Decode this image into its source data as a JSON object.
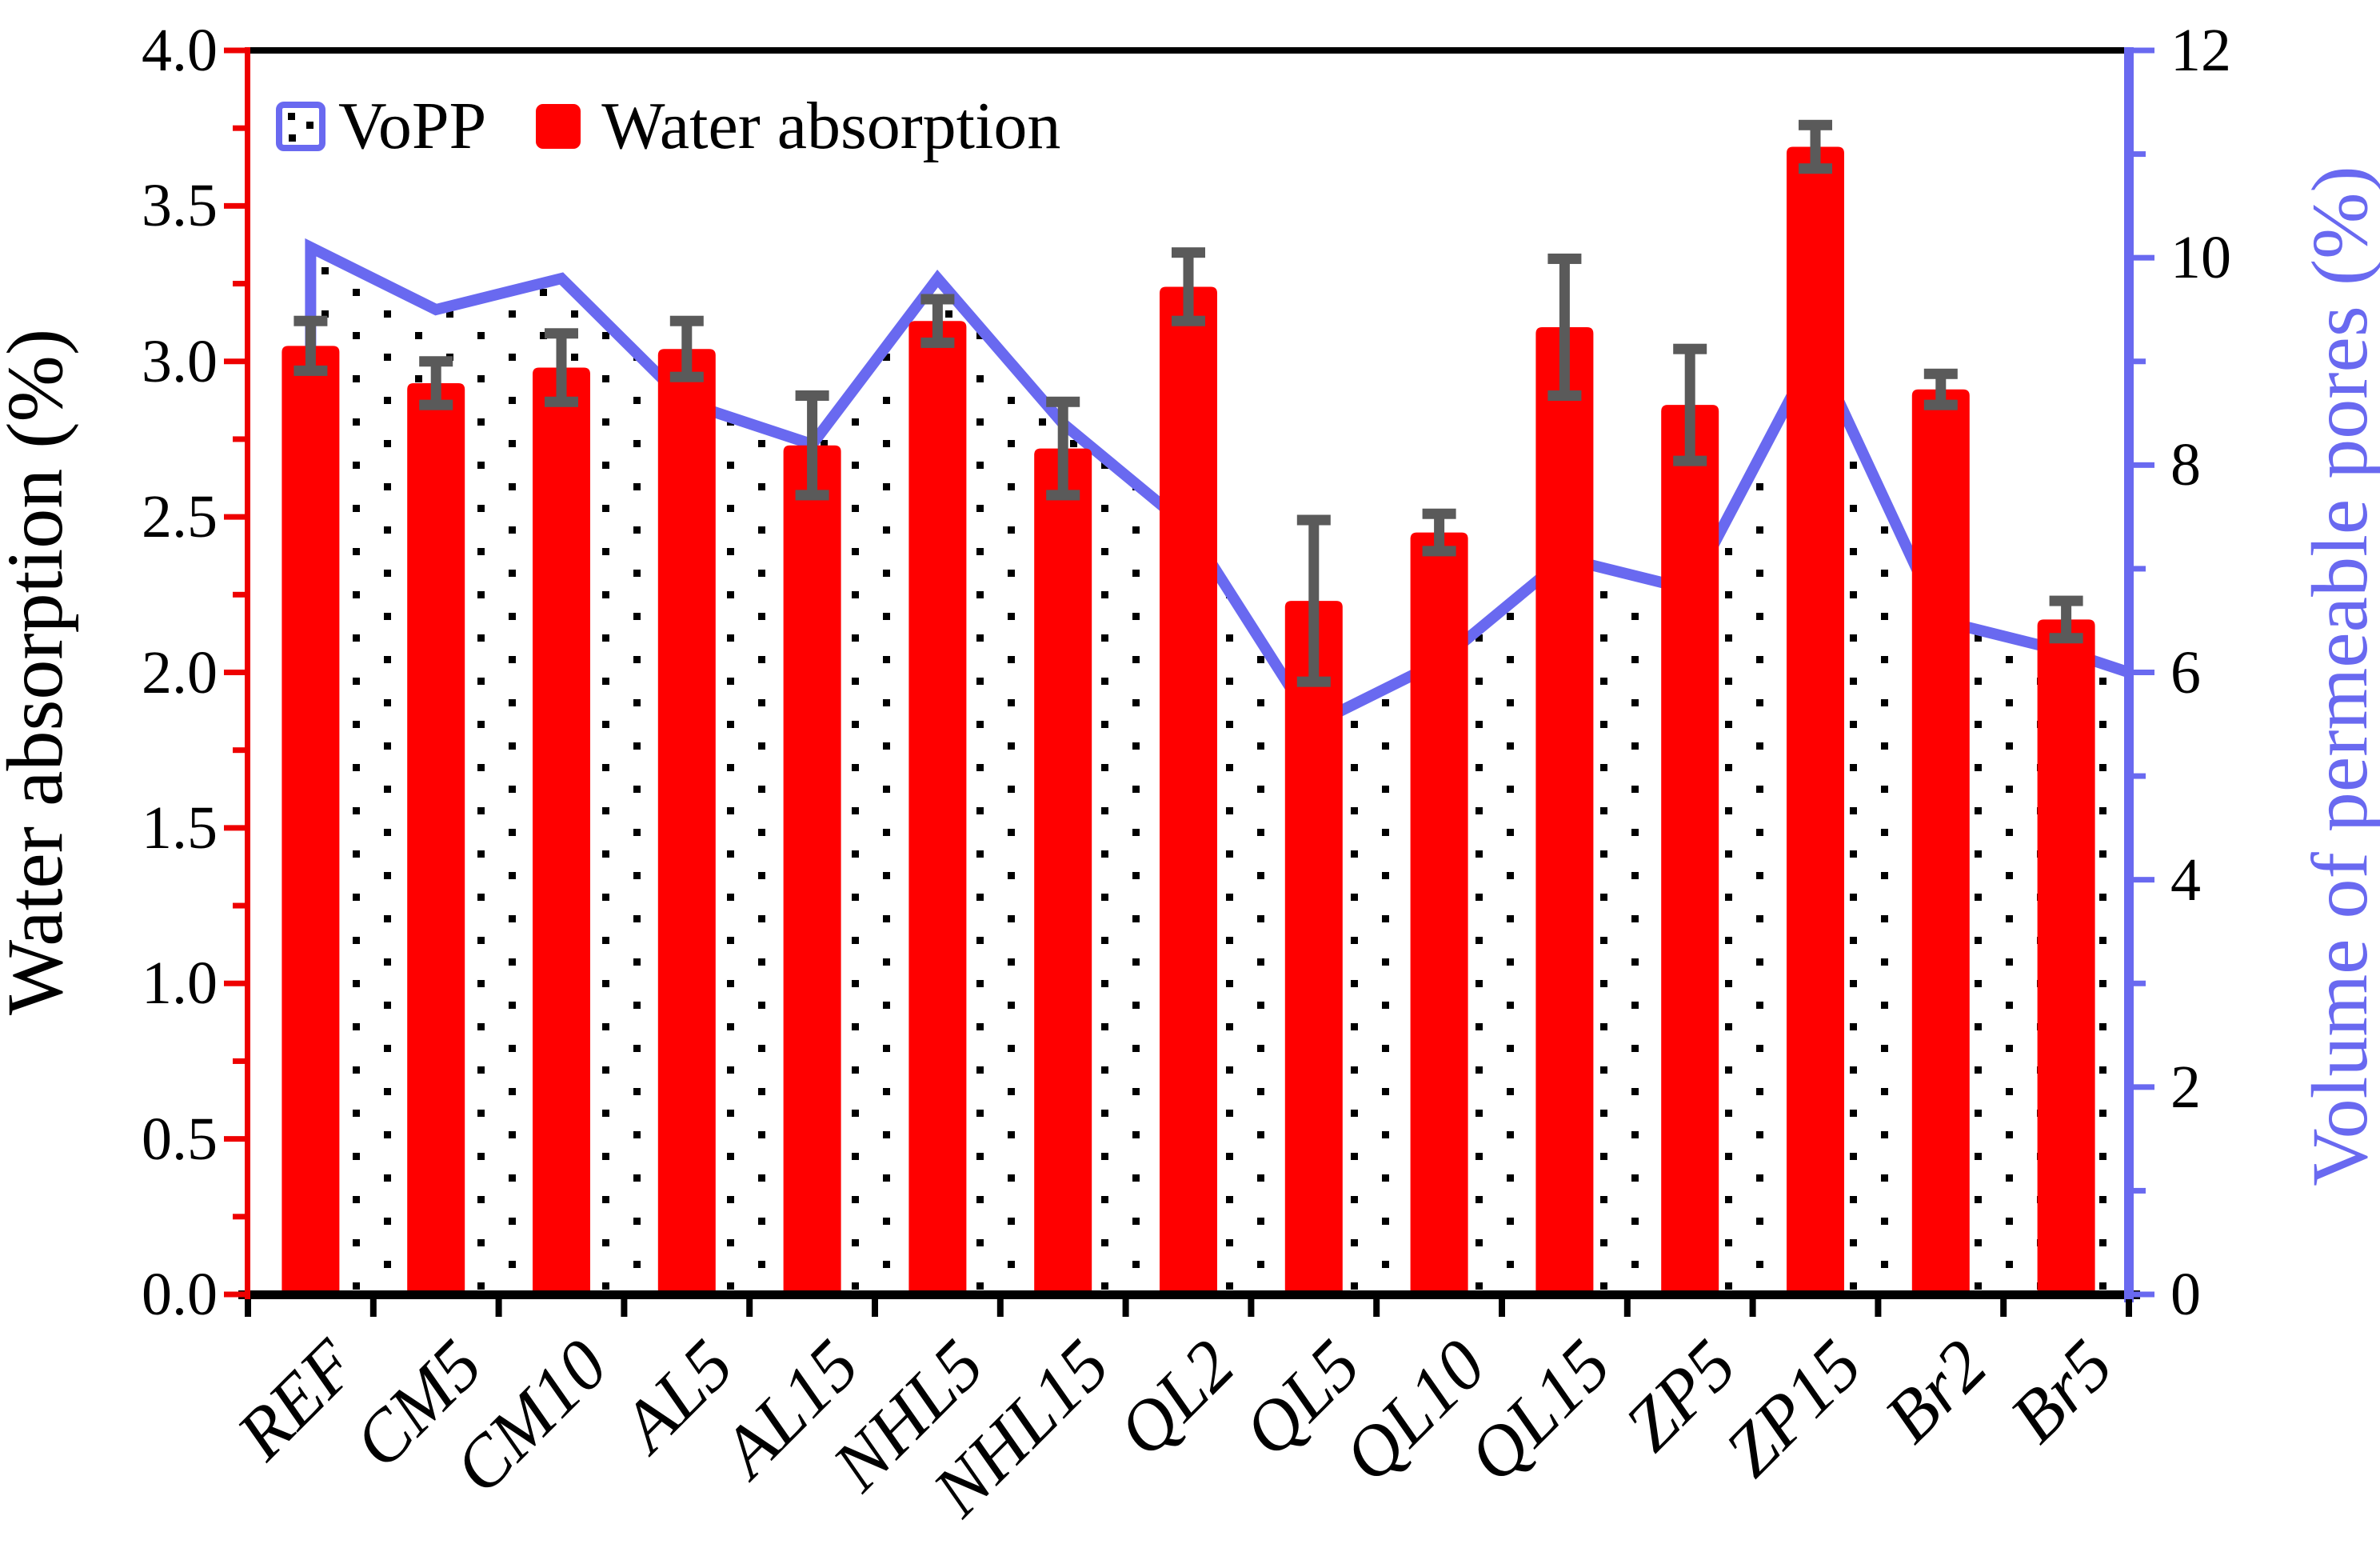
{
  "legend": {
    "vopp_label": "VoPP",
    "water_label": "Water absorption"
  },
  "chart_data": {
    "type": "bar",
    "subtype": "dual-axis bar + dotted area-line overlay",
    "categories": [
      "REF",
      "CM5",
      "CM10",
      "AL5",
      "AL15",
      "NHL5",
      "NHL15",
      "QL2",
      "QL5",
      "QL10",
      "QL15",
      "ZP5",
      "ZP15",
      "Br2",
      "Br5"
    ],
    "series": [
      {
        "name": "Water absorption",
        "type": "bar",
        "axis": "left",
        "color": "#ff0000",
        "values": [
          3.05,
          2.93,
          2.98,
          3.04,
          2.73,
          3.13,
          2.72,
          3.24,
          2.23,
          2.45,
          3.11,
          2.86,
          3.69,
          2.91,
          2.17
        ],
        "errors": [
          0.08,
          0.07,
          0.11,
          0.09,
          0.16,
          0.07,
          0.15,
          0.11,
          0.26,
          0.06,
          0.22,
          0.18,
          0.07,
          0.05,
          0.06
        ]
      },
      {
        "name": "VoPP",
        "type": "area-line",
        "axis": "right",
        "line_color": "#6969f0",
        "fill": "white with black dot pattern",
        "values": [
          10.1,
          9.5,
          9.8,
          8.6,
          8.2,
          9.8,
          8.4,
          7.4,
          5.5,
          6.1,
          7.1,
          6.8,
          9.1,
          6.5,
          6.2
        ],
        "right_edge_value": 6.0
      }
    ],
    "left_axis": {
      "label": "Water absorption (%)",
      "min": 0.0,
      "max": 4.0,
      "major_step": 0.5,
      "minor_step": 0.25,
      "spine_color": "#ee0000",
      "label_color": "#000000",
      "tick_labels": [
        "4.0",
        "3.5",
        "3.0",
        "2.5",
        "2.0",
        "1.5",
        "1.0",
        "0.5",
        "0.0"
      ]
    },
    "right_axis": {
      "label": "Volume of permeable pores (%)",
      "min": 0,
      "max": 12,
      "major_step": 2,
      "minor_step": 1,
      "spine_color": "#6969f0",
      "label_color": "#000000",
      "tick_labels": [
        "12",
        "10",
        "8",
        "6",
        "4",
        "2",
        "0"
      ]
    },
    "error_bar_color": "#5a5a5a",
    "grid": false,
    "legend_position": "top-left inside plot"
  }
}
